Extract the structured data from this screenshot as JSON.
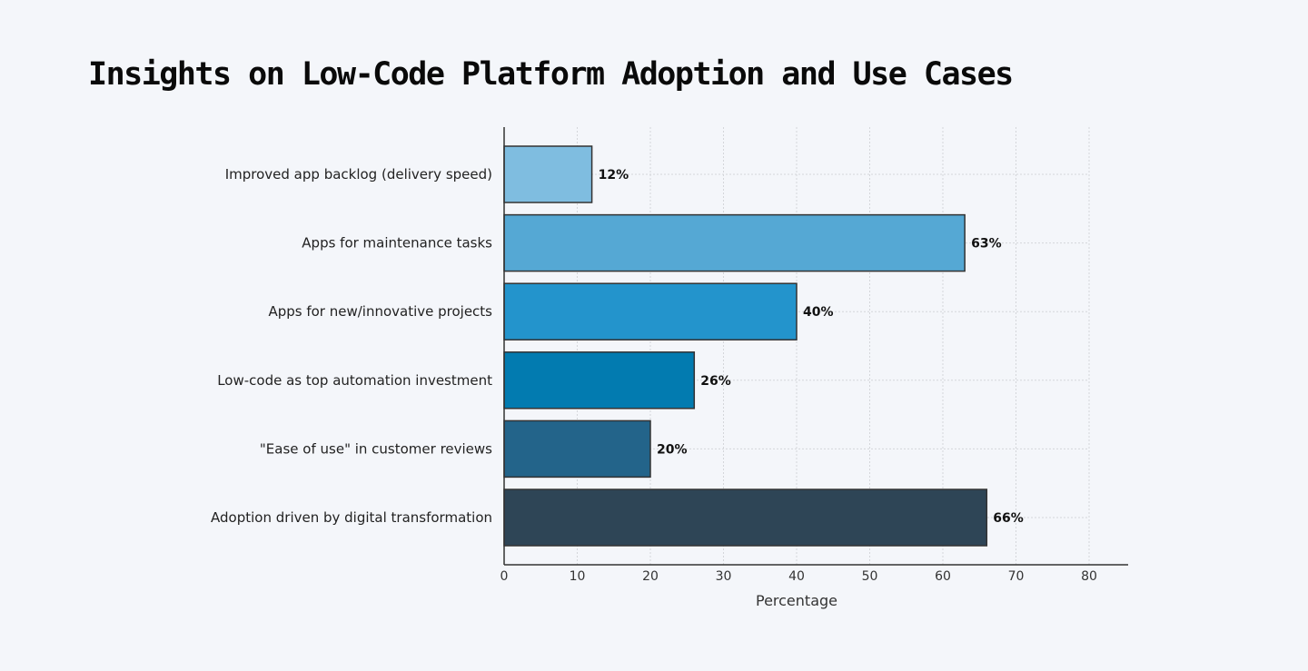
{
  "chart_data": {
    "type": "bar",
    "orientation": "horizontal",
    "title": "Insights on Low-Code Platform Adoption and Use Cases",
    "xlabel": "Percentage",
    "ylabel": "",
    "categories": [
      "Improved app backlog (delivery speed)",
      "Apps for maintenance tasks",
      "Apps for new/innovative projects",
      "Low-code as top automation investment",
      "\"Ease of use\" in customer reviews",
      "Adoption driven by digital transformation"
    ],
    "values": [
      12,
      63,
      40,
      26,
      20,
      66
    ],
    "data_labels": [
      "12%",
      "63%",
      "40%",
      "26%",
      "20%",
      "66%"
    ],
    "colors": [
      "#7fbde0",
      "#55a8d4",
      "#2394cc",
      "#027bb0",
      "#23648a",
      "#2e4556"
    ],
    "xlim": [
      0,
      85
    ],
    "xticks": [
      "0",
      "10",
      "20",
      "30",
      "40",
      "50",
      "60",
      "70",
      "80"
    ],
    "grid": true,
    "legend": "none"
  }
}
